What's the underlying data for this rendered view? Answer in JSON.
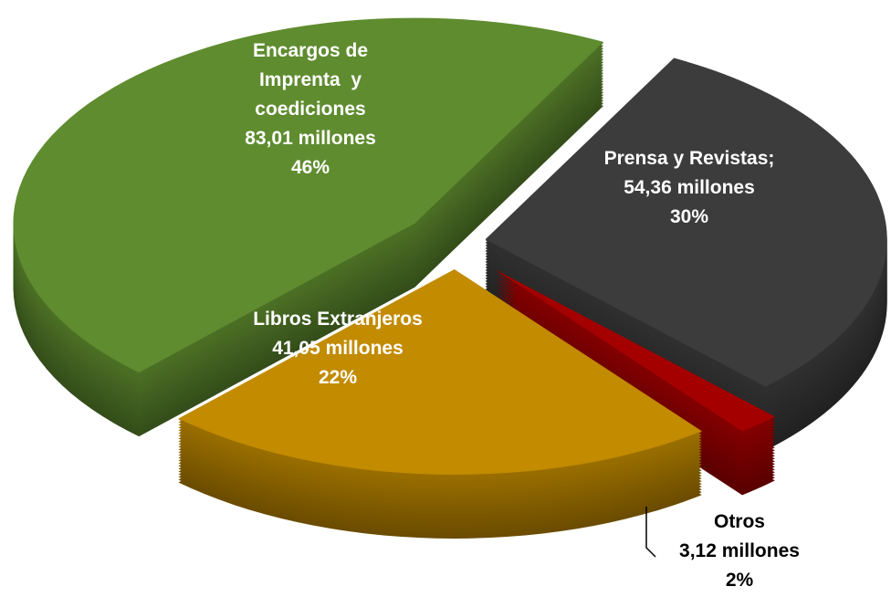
{
  "chart_data": {
    "type": "pie",
    "categories": [
      "Prensa y Revistas;",
      "Otros",
      "Libros Extranjeros",
      "Encargos de Imprenta  y coediciones"
    ],
    "values": [
      54.36,
      3.12,
      41.05,
      83.01
    ],
    "value_labels": [
      "54,36 millones",
      "3,12 millones",
      "41,05 millones",
      "83,01 millones"
    ],
    "percents": [
      30,
      2,
      22,
      46
    ],
    "percent_labels": [
      "30%",
      "2%",
      "22%",
      "46%"
    ],
    "colors": [
      "#3c3c3c",
      "#a50000",
      "#c28b00",
      "#5f8c2f"
    ]
  }
}
